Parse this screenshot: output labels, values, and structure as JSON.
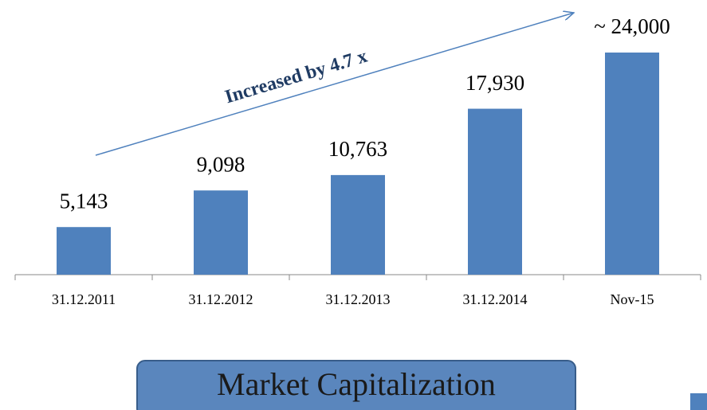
{
  "chart_data": {
    "type": "bar",
    "categories": [
      "31.12.2011",
      "31.12.2012",
      "31.12.2013",
      "31.12.2014",
      "Nov-15"
    ],
    "values": [
      5143,
      9098,
      10763,
      17930,
      24000
    ],
    "value_labels": [
      "5,143",
      "9,098",
      "10,763",
      "17,930",
      "~ 24,000"
    ],
    "color": "#4f81bd",
    "annotation": "Increased by 4.7 x",
    "footer": "Market Capitalization"
  }
}
